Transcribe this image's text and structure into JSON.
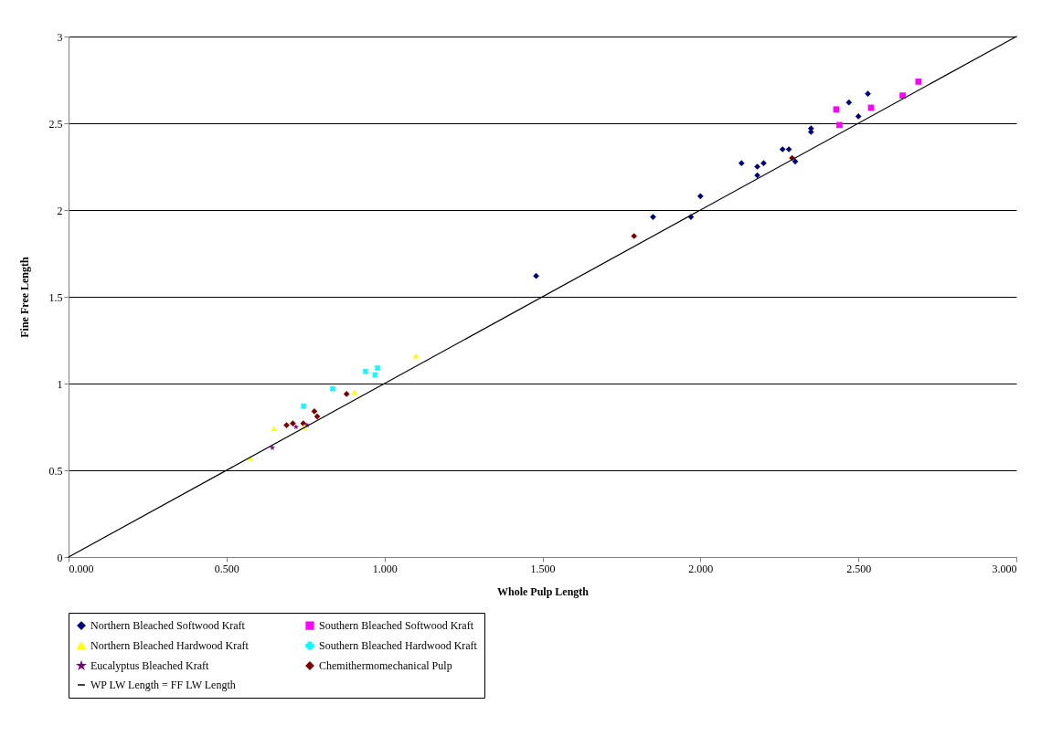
{
  "chart_data": {
    "type": "scatter",
    "xlabel": "Whole Pulp Length",
    "ylabel": "Fine Free Length",
    "xlim": [
      0,
      3
    ],
    "ylim": [
      0,
      3
    ],
    "xticks": [
      {
        "value": 0,
        "label": "0.000"
      },
      {
        "value": 0.5,
        "label": "0.500"
      },
      {
        "value": 1,
        "label": "1.000"
      },
      {
        "value": 1.5,
        "label": "1.500"
      },
      {
        "value": 2,
        "label": "2.000"
      },
      {
        "value": 2.5,
        "label": "2.500"
      },
      {
        "value": 3,
        "label": "3.000"
      }
    ],
    "yticks": [
      0,
      0.5,
      1,
      1.5,
      2,
      2.5,
      3
    ],
    "grid": "y",
    "legend": "bottom",
    "series": [
      {
        "name": "Northern Bleached Softwood Kraft",
        "color": "#000080",
        "marker": "diamond",
        "x": [
          1.48,
          1.85,
          1.97,
          2.0,
          2.13,
          2.18,
          2.18,
          2.2,
          2.26,
          2.28,
          2.3,
          2.35,
          2.35,
          2.47,
          2.5,
          2.53
        ],
        "values": [
          1.62,
          1.96,
          1.96,
          2.08,
          2.27,
          2.2,
          2.25,
          2.27,
          2.35,
          2.35,
          2.28,
          2.47,
          2.45,
          2.62,
          2.54,
          2.67
        ]
      },
      {
        "name": "Southern Bleached Softwood Kraft",
        "color": "#ff00ff",
        "marker": "square",
        "x": [
          2.43,
          2.44,
          2.54,
          2.64,
          2.69
        ],
        "values": [
          2.58,
          2.49,
          2.59,
          2.66,
          2.74
        ]
      },
      {
        "name": "Northern Bleached Hardwood Kraft",
        "color": "#ffff00",
        "marker": "triangle",
        "x": [
          0.575,
          0.65,
          0.746,
          0.905,
          1.1
        ],
        "values": [
          0.57,
          0.74,
          0.75,
          0.95,
          1.16
        ]
      },
      {
        "name": "Southern Bleached Hardwood Kraft",
        "color": "#00ffff",
        "marker": "cross",
        "x": [
          0.744,
          0.836,
          0.94,
          0.97,
          0.978
        ],
        "values": [
          0.87,
          0.97,
          1.07,
          1.05,
          1.09
        ]
      },
      {
        "name": "Eucalyptus Bleached Kraft",
        "color": "#800080",
        "marker": "star",
        "x": [
          0.645,
          0.72,
          0.755
        ],
        "values": [
          0.63,
          0.75,
          0.76
        ]
      },
      {
        "name": "Chemithermomechanical Pulp",
        "color": "#800000",
        "marker": "diamond",
        "x": [
          0.69,
          0.71,
          0.743,
          0.778,
          0.787,
          0.88,
          1.79,
          2.29
        ],
        "values": [
          0.76,
          0.77,
          0.77,
          0.84,
          0.81,
          0.94,
          1.85,
          2.3
        ]
      },
      {
        "name": "WP LW Length = FF LW  Length",
        "color": "#000000",
        "type": "line",
        "marker": "none",
        "line_style": "solid",
        "x": [
          0,
          3
        ],
        "values": [
          0,
          3
        ]
      }
    ]
  }
}
